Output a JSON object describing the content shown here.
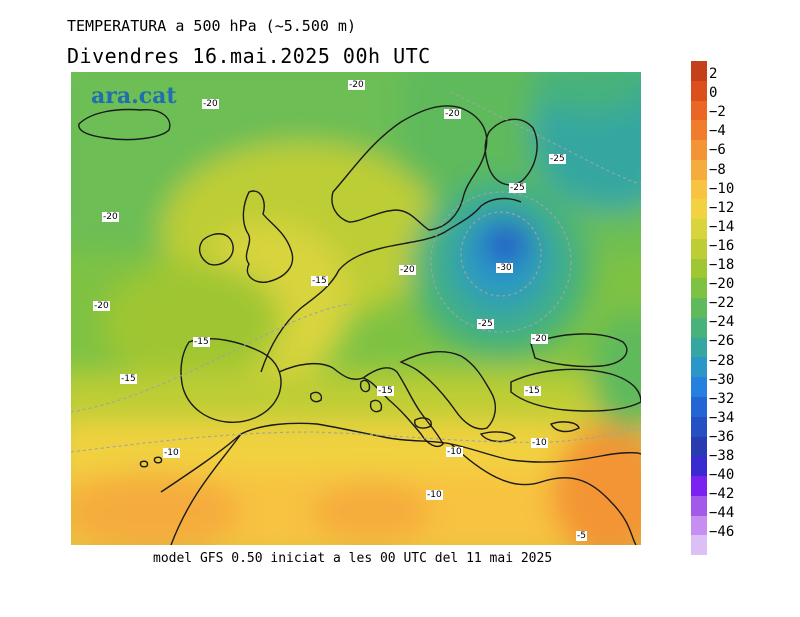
{
  "header": {
    "title": "TEMPERATURA a 500 hPa (~5.500 m)",
    "subtitle": "Divendres  16.mai.2025 00h UTC"
  },
  "map": {
    "logo": "ara.cat",
    "contour_labels": [
      "-20",
      "-20",
      "-20",
      "-25",
      "-25",
      "-20",
      "-15",
      "-20",
      "-30",
      "-20",
      "-25",
      "-20",
      "-15",
      "-15",
      "-15",
      "-15",
      "-10",
      "-10",
      "-10",
      "-10",
      "-5"
    ]
  },
  "footer": {
    "text": "model GFS 0.50 iniciat a les 00 UTC del 11 mai 2025"
  },
  "colorbar": {
    "labels": [
      "2",
      "0",
      "−2",
      "−4",
      "−6",
      "−8",
      "−10",
      "−12",
      "−14",
      "−16",
      "−18",
      "−20",
      "−22",
      "−24",
      "−26",
      "−28",
      "−30",
      "−32",
      "−34",
      "−36",
      "−38",
      "−40",
      "−42",
      "−44",
      "−46"
    ],
    "colors": [
      "#c4401a",
      "#dc4e1c",
      "#ea6626",
      "#f07d2c",
      "#f39535",
      "#f5ac3d",
      "#f8c340",
      "#f1d240",
      "#d8d43c",
      "#bdcd36",
      "#9fc633",
      "#7ec244",
      "#5fba5c",
      "#47b27a",
      "#35a7a0",
      "#2b97c8",
      "#2680e0",
      "#2465d6",
      "#2550c4",
      "#2a3ab0",
      "#3a2bd0",
      "#7a22f0",
      "#a45ae8",
      "#c58ef0",
      "#dcc0f5"
    ]
  }
}
